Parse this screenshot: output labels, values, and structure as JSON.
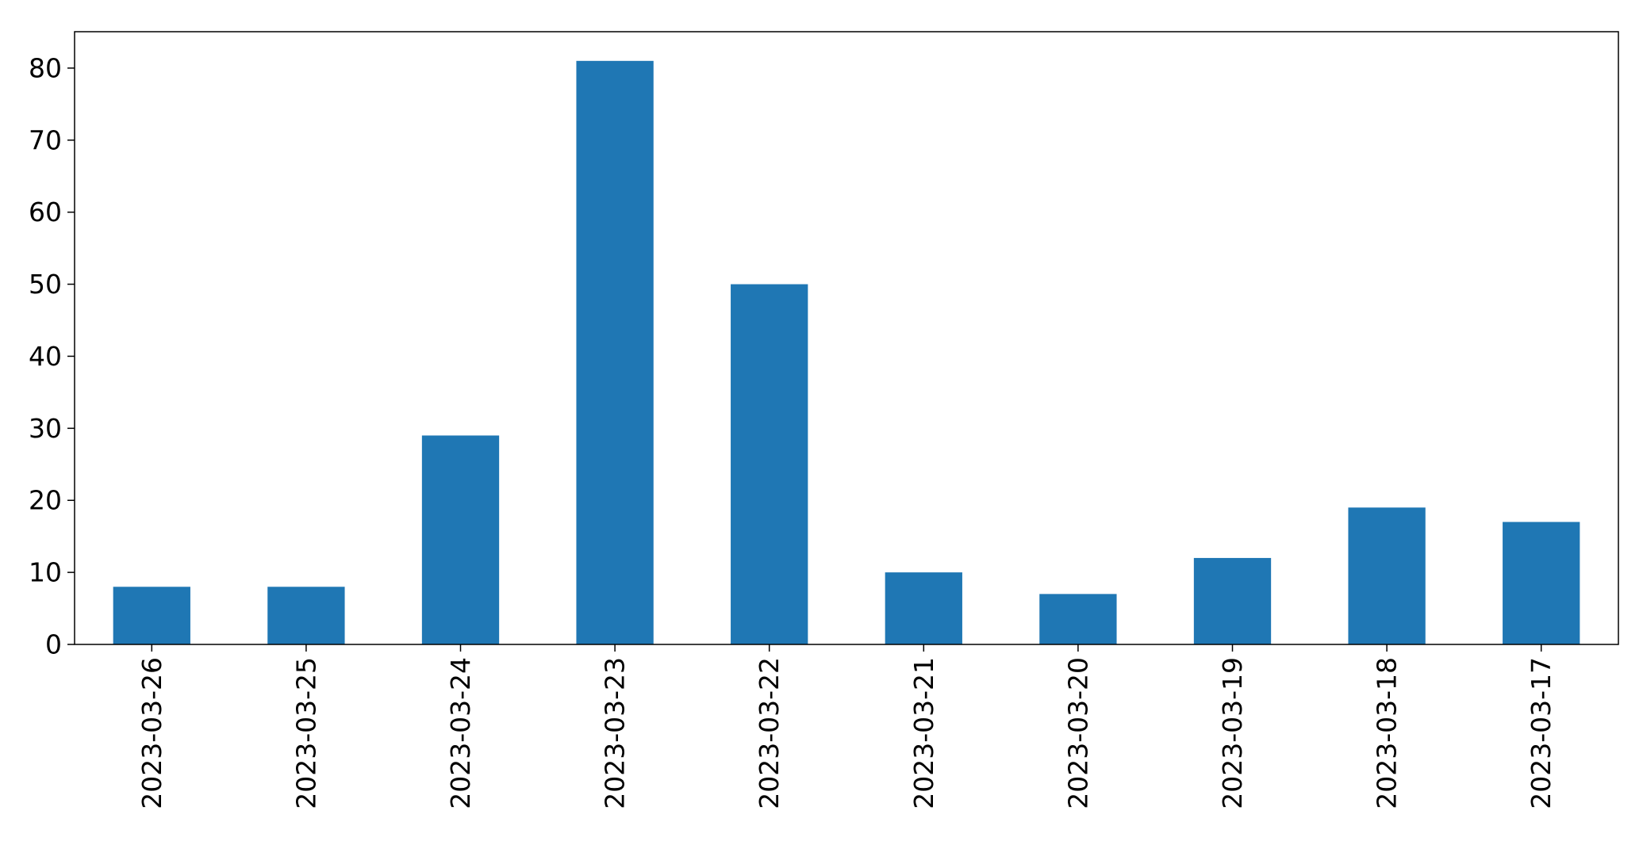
{
  "chart_data": {
    "type": "bar",
    "title": "",
    "xlabel": "",
    "ylabel": "",
    "categories": [
      "2023-03-26",
      "2023-03-25",
      "2023-03-24",
      "2023-03-23",
      "2023-03-22",
      "2023-03-21",
      "2023-03-20",
      "2023-03-19",
      "2023-03-18",
      "2023-03-17"
    ],
    "values": [
      8,
      8,
      29,
      81,
      50,
      10,
      7,
      12,
      19,
      17
    ],
    "ylim": [
      0,
      85.05
    ],
    "yticks": [
      0,
      10,
      20,
      30,
      40,
      50,
      60,
      70,
      80
    ],
    "grid": false,
    "legend": "none",
    "bar_color": "#1f77b4"
  }
}
